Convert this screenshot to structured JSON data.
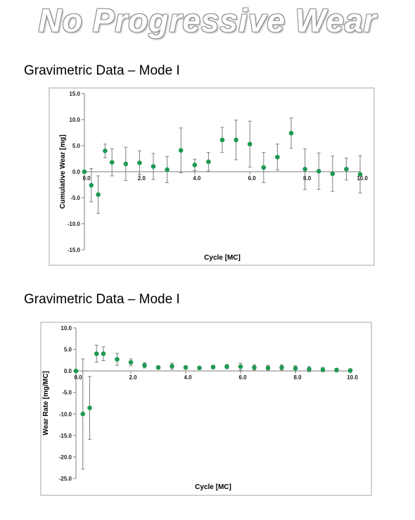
{
  "slide": {
    "title": "No Progressive Wear"
  },
  "colors": {
    "marker": "#1e9a52",
    "error_bar": "#7f7f7f",
    "axis": "#7f7f7f",
    "frame": "#a6a6a6"
  },
  "chart_data": [
    {
      "type": "scatter",
      "title": "Gravimetric Data – Mode I",
      "xlabel": "Cycle [MC]",
      "ylabel": "Cumulative Wear [mg]",
      "xlim": [
        0,
        10
      ],
      "ylim": [
        -15,
        15
      ],
      "grid": false,
      "x_ticks": [
        "0.0",
        "2.0",
        "4.0",
        "6.0",
        "8.0",
        "10.0"
      ],
      "y_ticks": [
        "15.0",
        "10.0",
        "5.0",
        "0.0",
        "-5.0",
        "-10.0",
        "-15.0"
      ],
      "series": [
        {
          "x": [
            0,
            0.25,
            0.5,
            0.75,
            1.0,
            1.5,
            2.0,
            2.5,
            3.0,
            3.5,
            4.0,
            4.5,
            5.0,
            5.5,
            6.0,
            6.5,
            7.0,
            7.5,
            8.0,
            8.5,
            9.0,
            9.5,
            10.0
          ],
          "y": [
            0.0,
            -2.6,
            -4.4,
            4.0,
            1.8,
            1.5,
            1.7,
            1.0,
            0.4,
            4.1,
            1.3,
            1.9,
            6.1,
            6.1,
            5.3,
            0.8,
            2.8,
            7.4,
            0.5,
            0.1,
            -0.4,
            0.5,
            -0.5
          ],
          "error": [
            0,
            3.2,
            3.6,
            1.3,
            2.6,
            3.2,
            2.3,
            2.5,
            2.5,
            4.3,
            1.1,
            1.8,
            2.4,
            3.8,
            4.4,
            2.9,
            2.5,
            2.9,
            3.9,
            3.5,
            3.4,
            2.1,
            3.6
          ]
        }
      ]
    },
    {
      "type": "scatter",
      "title": "Gravimetric Data – Mode I",
      "xlabel": "Cycle [MC]",
      "ylabel": "Wear Rate [mg/MC]",
      "xlim": [
        0,
        10
      ],
      "ylim": [
        -25,
        10
      ],
      "grid": false,
      "x_ticks": [
        "0.0",
        "2.0",
        "4.0",
        "6.0",
        "8.0",
        "10.0"
      ],
      "y_ticks": [
        "10.0",
        "5.0",
        "0.0",
        "-5.0",
        "-10.0",
        "-15.0",
        "-20.0",
        "-25.0"
      ],
      "series": [
        {
          "x": [
            0,
            0.25,
            0.5,
            0.75,
            1.0,
            1.5,
            2.0,
            2.5,
            3.0,
            3.5,
            4.0,
            4.5,
            5.0,
            5.5,
            6.0,
            6.5,
            7.0,
            7.5,
            8.0,
            8.5,
            9.0,
            9.5,
            10.0
          ],
          "y": [
            0.0,
            -10.0,
            -8.6,
            4.0,
            4.0,
            2.7,
            2.0,
            1.3,
            0.8,
            1.1,
            0.8,
            0.7,
            0.9,
            1.0,
            1.0,
            0.8,
            0.7,
            0.8,
            0.6,
            0.4,
            0.3,
            0.2,
            0.1
          ],
          "error": [
            0,
            12.8,
            7.3,
            2.0,
            1.6,
            1.4,
            0.8,
            0.6,
            0.4,
            0.7,
            0.4,
            0.3,
            0.4,
            0.5,
            0.8,
            0.6,
            0.6,
            0.6,
            0.6,
            0.6,
            0.5,
            0.4,
            0.4
          ]
        }
      ]
    }
  ]
}
